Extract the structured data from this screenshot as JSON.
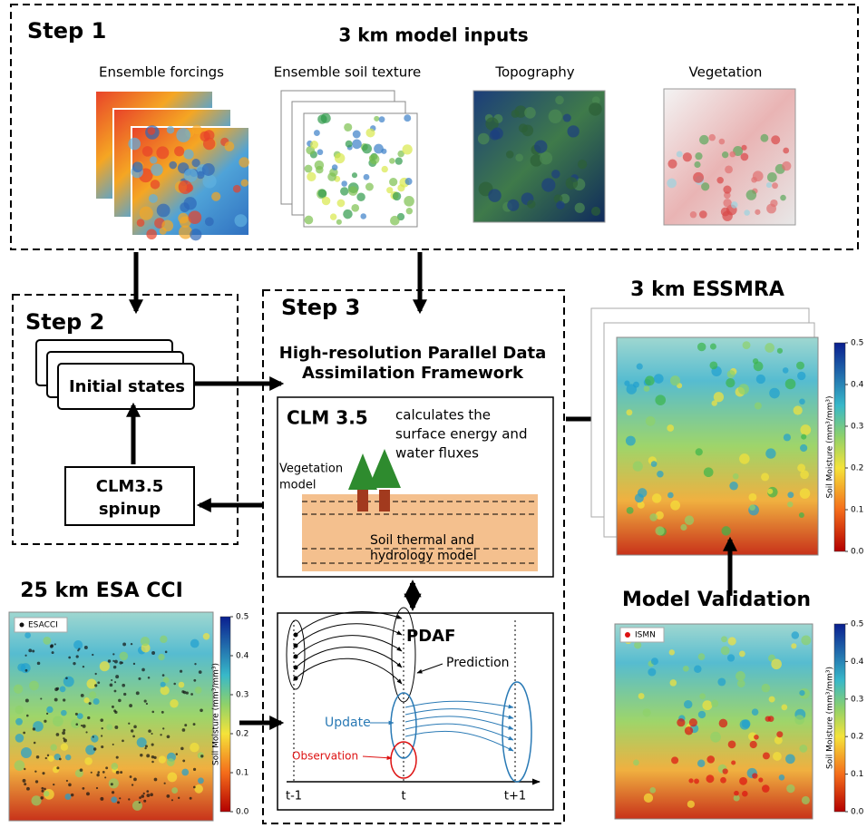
{
  "step1": {
    "title": "Step 1",
    "heading": "3 km model inputs",
    "inputs": [
      "Ensemble forcings",
      "Ensemble soil texture",
      "Topography",
      "Vegetation"
    ]
  },
  "step2": {
    "title": "Step 2",
    "initial": "Initial states",
    "spinup": [
      "CLM3.5",
      "spinup"
    ]
  },
  "step3": {
    "title": "Step 3",
    "framework": [
      "High-resolution Parallel Data",
      "Assimilation Framework"
    ],
    "clm": {
      "title": "CLM 3.5",
      "desc": [
        "calculates the",
        "surface energy and",
        "water fluxes"
      ],
      "vegetation": [
        "Vegetation",
        "model"
      ],
      "soil": [
        "Soil thermal and",
        "hydrology model"
      ]
    },
    "pdaf": {
      "title": "PDAF",
      "prediction": "Prediction",
      "update": "Update",
      "observation": "Observation",
      "axis": [
        "t-1",
        "t",
        "t+1"
      ]
    }
  },
  "essmra": {
    "title": "3 km ESSMRA"
  },
  "esa": {
    "title": "25 km ESA CCI",
    "legend": "ESACCI"
  },
  "validation": {
    "title": "Model Validation",
    "legend": "ISMN"
  },
  "colorbar": {
    "label": "Soil Moisture (mm³/mm³)",
    "ticks": [
      "0.5",
      "0.4",
      "0.3",
      "0.2",
      "0.1",
      "0.0"
    ]
  }
}
